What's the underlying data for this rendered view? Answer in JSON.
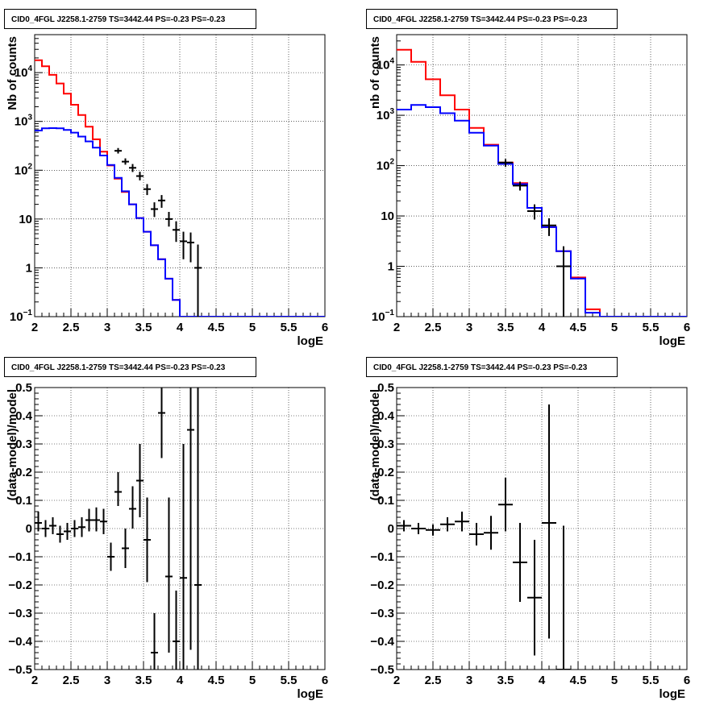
{
  "chart_data": [
    {
      "type": "histogram",
      "title": "CID0_4FGL J2258.1-2759 TS=3442.44 PS=-0.23 PS=-0.23",
      "xlabel": "logE",
      "ylabel": "Nb of counts",
      "xlim": [
        2,
        6
      ],
      "ylim": [
        0.1,
        60000
      ],
      "yscale": "log",
      "grid": true,
      "xticks": [
        "2",
        "2.5",
        "3",
        "3.5",
        "4",
        "4.5",
        "5",
        "5.5",
        "6"
      ],
      "yticks": [
        {
          "v": 0.1,
          "label": "10",
          "sup": "−1"
        },
        {
          "v": 1,
          "label": "1",
          "sup": ""
        },
        {
          "v": 10,
          "label": "10",
          "sup": ""
        },
        {
          "v": 100,
          "label": "10",
          "sup": "2"
        },
        {
          "v": 1000,
          "label": "10",
          "sup": "3"
        },
        {
          "v": 10000,
          "label": "10",
          "sup": "4"
        }
      ],
      "bin_width": 0.1,
      "series": [
        {
          "color": "#ff0000",
          "x0": 2.0,
          "values": [
            18000,
            13500,
            9000,
            6000,
            3700,
            2200,
            1350,
            780,
            430,
            240,
            125,
            67,
            36,
            20,
            10.5,
            5.5,
            2.9,
            1.5,
            0.6,
            0.22,
            0.1,
            0.1,
            0.1,
            0.1,
            0.1,
            0.1,
            0.1,
            0.1,
            0.1,
            0.1,
            0.1,
            0.1,
            0.1,
            0.1,
            0.1,
            0.1,
            0.1,
            0.1,
            0.1,
            0.1
          ]
        },
        {
          "color": "#0000ff",
          "x0": 2.0,
          "values": [
            650,
            720,
            730,
            720,
            670,
            590,
            490,
            390,
            290,
            200,
            128,
            70,
            37,
            20,
            10.5,
            5.5,
            2.9,
            1.5,
            0.6,
            0.22,
            0.1,
            0.1,
            0.1,
            0.1,
            0.1,
            0.1,
            0.1,
            0.1,
            0.1,
            0.1,
            0.1,
            0.1,
            0.1,
            0.1,
            0.1,
            0.1,
            0.1,
            0.1,
            0.1,
            0.1
          ]
        }
      ],
      "points": [
        {
          "x": 3.15,
          "y": 250,
          "lo": 220,
          "hi": 285
        },
        {
          "x": 3.25,
          "y": 150,
          "lo": 130,
          "hi": 175
        },
        {
          "x": 3.35,
          "y": 112,
          "lo": 92,
          "hi": 134
        },
        {
          "x": 3.45,
          "y": 76,
          "lo": 62,
          "hi": 93
        },
        {
          "x": 3.55,
          "y": 41,
          "lo": 31,
          "hi": 52
        },
        {
          "x": 3.65,
          "y": 16,
          "lo": 11,
          "hi": 22
        },
        {
          "x": 3.75,
          "y": 24,
          "lo": 17,
          "hi": 31
        },
        {
          "x": 3.85,
          "y": 10,
          "lo": 7,
          "hi": 14
        },
        {
          "x": 3.95,
          "y": 6,
          "lo": 3.4,
          "hi": 9
        },
        {
          "x": 4.05,
          "y": 3.5,
          "lo": 1.5,
          "hi": 5.5
        },
        {
          "x": 4.15,
          "y": 3.3,
          "lo": 1.3,
          "hi": 5.3
        },
        {
          "x": 4.25,
          "y": 1,
          "lo": 0.1,
          "hi": 3
        }
      ]
    },
    {
      "type": "histogram",
      "title": "CID0_4FGL J2258.1-2759 TS=3442.44 PS=-0.23 PS=-0.23",
      "xlabel": "logE",
      "ylabel": "nb of counts",
      "xlim": [
        2,
        6
      ],
      "ylim": [
        0.1,
        40000
      ],
      "yscale": "log",
      "grid": true,
      "xticks": [
        "2",
        "2.5",
        "3",
        "3.5",
        "4",
        "4.5",
        "5",
        "5.5",
        "6"
      ],
      "yticks": [
        {
          "v": 0.1,
          "label": "10",
          "sup": "−1"
        },
        {
          "v": 1,
          "label": "1",
          "sup": ""
        },
        {
          "v": 10,
          "label": "10",
          "sup": ""
        },
        {
          "v": 100,
          "label": "10",
          "sup": "2"
        },
        {
          "v": 1000,
          "label": "10",
          "sup": "3"
        },
        {
          "v": 10000,
          "label": "10",
          "sup": "4"
        }
      ],
      "bin_width": 0.2,
      "series": [
        {
          "color": "#ff0000",
          "x0": 2.0,
          "values": [
            20000,
            11500,
            5200,
            2500,
            1300,
            560,
            260,
            115,
            45,
            14.5,
            6,
            2,
            0.6,
            0.14,
            0.1,
            0.1,
            0.1,
            0.1,
            0.1,
            0.1
          ]
        },
        {
          "color": "#0000ff",
          "x0": 2.0,
          "values": [
            1300,
            1600,
            1450,
            1100,
            780,
            450,
            250,
            108,
            43,
            14.5,
            6,
            2,
            0.57,
            0.12,
            0.1,
            0.1,
            0.1,
            0.1,
            0.1,
            0.1
          ]
        }
      ],
      "points": [
        {
          "x": 3.5,
          "y": 115,
          "lo": 95,
          "hi": 135
        },
        {
          "x": 3.7,
          "y": 40,
          "lo": 32,
          "hi": 48
        },
        {
          "x": 3.9,
          "y": 12.5,
          "lo": 8.5,
          "hi": 17
        },
        {
          "x": 4.1,
          "y": 6.5,
          "lo": 4,
          "hi": 9
        },
        {
          "x": 4.3,
          "y": 1,
          "lo": 0.1,
          "hi": 2.5
        }
      ]
    },
    {
      "type": "scatter",
      "title": "CID0_4FGL J2258.1-2759 TS=3442.44 PS=-0.23 PS=-0.23",
      "xlabel": "logE",
      "ylabel": "(data-model)/model",
      "xlim": [
        2,
        6
      ],
      "ylim": [
        -0.5,
        0.5
      ],
      "yscale": "linear",
      "grid": true,
      "xticks": [
        "2",
        "2.5",
        "3",
        "3.5",
        "4",
        "4.5",
        "5",
        "5.5",
        "6"
      ],
      "yticks": [
        {
          "v": -0.5,
          "label": "−0.5"
        },
        {
          "v": -0.4,
          "label": "−0.4"
        },
        {
          "v": -0.3,
          "label": "−0.3"
        },
        {
          "v": -0.2,
          "label": "−0.2"
        },
        {
          "v": -0.1,
          "label": "−0.1"
        },
        {
          "v": 0,
          "label": "0"
        },
        {
          "v": 0.1,
          "label": "0.1"
        },
        {
          "v": 0.2,
          "label": "0.2"
        },
        {
          "v": 0.3,
          "label": "0.3"
        },
        {
          "v": 0.4,
          "label": "0.4"
        },
        {
          "v": 0.5,
          "label": "0.5"
        }
      ],
      "half_width": 0.05,
      "points": [
        {
          "x": 2.05,
          "y": 0.02,
          "lo": -0.01,
          "hi": 0.06
        },
        {
          "x": 2.15,
          "y": 0.0,
          "lo": -0.03,
          "hi": 0.03
        },
        {
          "x": 2.25,
          "y": 0.01,
          "lo": -0.02,
          "hi": 0.04
        },
        {
          "x": 2.35,
          "y": -0.02,
          "lo": -0.05,
          "hi": 0.01
        },
        {
          "x": 2.45,
          "y": -0.01,
          "lo": -0.04,
          "hi": 0.02
        },
        {
          "x": 2.55,
          "y": 0.0,
          "lo": -0.03,
          "hi": 0.03
        },
        {
          "x": 2.65,
          "y": 0.005,
          "lo": -0.03,
          "hi": 0.04
        },
        {
          "x": 2.75,
          "y": 0.03,
          "lo": -0.01,
          "hi": 0.07
        },
        {
          "x": 2.85,
          "y": 0.03,
          "lo": -0.01,
          "hi": 0.075
        },
        {
          "x": 2.95,
          "y": 0.025,
          "lo": -0.02,
          "hi": 0.07
        },
        {
          "x": 3.05,
          "y": -0.1,
          "lo": -0.15,
          "hi": -0.05
        },
        {
          "x": 3.15,
          "y": 0.13,
          "lo": 0.08,
          "hi": 0.2
        },
        {
          "x": 3.25,
          "y": -0.07,
          "lo": -0.14,
          "hi": 0.0
        },
        {
          "x": 3.35,
          "y": 0.07,
          "lo": 0.0,
          "hi": 0.15
        },
        {
          "x": 3.45,
          "y": 0.17,
          "lo": 0.04,
          "hi": 0.3
        },
        {
          "x": 3.55,
          "y": -0.04,
          "lo": -0.19,
          "hi": 0.11
        },
        {
          "x": 3.65,
          "y": -0.44,
          "lo": -0.5,
          "hi": -0.3
        },
        {
          "x": 3.75,
          "y": 0.41,
          "lo": 0.25,
          "hi": 0.5
        },
        {
          "x": 3.85,
          "y": -0.17,
          "lo": -0.44,
          "hi": 0.11
        },
        {
          "x": 3.95,
          "y": -0.4,
          "lo": -0.5,
          "hi": -0.22
        },
        {
          "x": 4.05,
          "y": -0.175,
          "lo": -0.5,
          "hi": 0.3
        },
        {
          "x": 4.15,
          "y": 0.35,
          "lo": -0.43,
          "hi": 0.5
        },
        {
          "x": 4.25,
          "y": -0.2,
          "lo": -0.5,
          "hi": 0.5
        }
      ]
    },
    {
      "type": "scatter",
      "title": "CID0_4FGL J2258.1-2759 TS=3442.44 PS=-0.23 PS=-0.23",
      "xlabel": "logE",
      "ylabel": "(data-model)/model",
      "xlim": [
        2,
        6
      ],
      "ylim": [
        -0.5,
        0.5
      ],
      "yscale": "linear",
      "grid": true,
      "xticks": [
        "2",
        "2.5",
        "3",
        "3.5",
        "4",
        "4.5",
        "5",
        "5.5",
        "6"
      ],
      "yticks": [
        {
          "v": -0.5,
          "label": "−0.5"
        },
        {
          "v": -0.4,
          "label": "−0.4"
        },
        {
          "v": -0.3,
          "label": "−0.3"
        },
        {
          "v": -0.2,
          "label": "−0.2"
        },
        {
          "v": -0.1,
          "label": "−0.1"
        },
        {
          "v": 0,
          "label": "0"
        },
        {
          "v": 0.1,
          "label": "0.1"
        },
        {
          "v": 0.2,
          "label": "0.2"
        },
        {
          "v": 0.3,
          "label": "0.3"
        },
        {
          "v": 0.4,
          "label": "0.4"
        },
        {
          "v": 0.5,
          "label": "0.5"
        }
      ],
      "half_width": 0.1,
      "points": [
        {
          "x": 2.1,
          "y": 0.01,
          "lo": -0.01,
          "hi": 0.03
        },
        {
          "x": 2.3,
          "y": 0.0,
          "lo": -0.02,
          "hi": 0.02
        },
        {
          "x": 2.5,
          "y": -0.005,
          "lo": -0.025,
          "hi": 0.015
        },
        {
          "x": 2.7,
          "y": 0.015,
          "lo": -0.01,
          "hi": 0.04
        },
        {
          "x": 2.9,
          "y": 0.025,
          "lo": -0.01,
          "hi": 0.06
        },
        {
          "x": 3.1,
          "y": -0.02,
          "lo": -0.06,
          "hi": 0.02
        },
        {
          "x": 3.3,
          "y": -0.015,
          "lo": -0.075,
          "hi": 0.045
        },
        {
          "x": 3.5,
          "y": 0.085,
          "lo": -0.01,
          "hi": 0.18
        },
        {
          "x": 3.7,
          "y": -0.12,
          "lo": -0.26,
          "hi": 0.02
        },
        {
          "x": 3.9,
          "y": -0.245,
          "lo": -0.45,
          "hi": -0.04
        },
        {
          "x": 4.1,
          "y": 0.02,
          "lo": -0.39,
          "hi": 0.44
        },
        {
          "x": 4.3,
          "y": -0.5,
          "lo": -0.5,
          "hi": 0.01
        }
      ]
    }
  ]
}
